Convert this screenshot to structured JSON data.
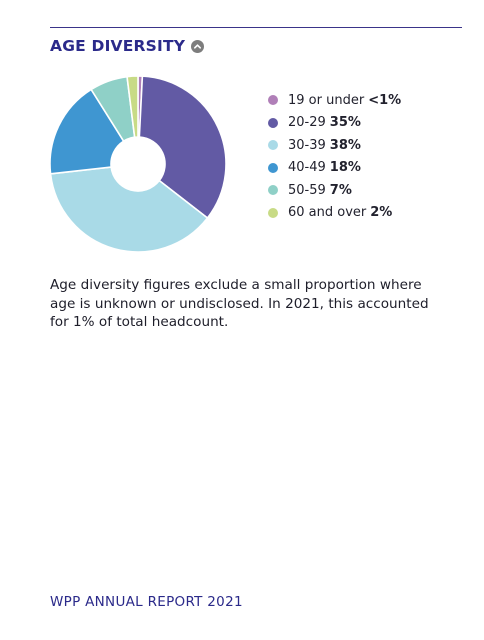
{
  "section": {
    "title": "AGE DIVERSITY",
    "toggle_icon": "chevron-up-icon"
  },
  "chart_data": {
    "type": "pie",
    "donut": true,
    "title": "AGE DIVERSITY",
    "categories": [
      "19 or under",
      "20-29",
      "30-39",
      "40-49",
      "50-59",
      "60 and over"
    ],
    "values": [
      0.8,
      35,
      38,
      18,
      7,
      2
    ],
    "value_labels": [
      "<1%",
      "35%",
      "38%",
      "18%",
      "7%",
      "2%"
    ],
    "colors": [
      "#b07fb8",
      "#625aa4",
      "#a9dae7",
      "#3f96d1",
      "#8fd0c7",
      "#c8db86"
    ],
    "legend_position": "right"
  },
  "legend": [
    {
      "label": "19 or under",
      "value": "<1%",
      "color": "#b07fb8"
    },
    {
      "label": "20-29",
      "value": "35%",
      "color": "#625aa4"
    },
    {
      "label": "30-39",
      "value": "38%",
      "color": "#a9dae7"
    },
    {
      "label": "40-49",
      "value": "18%",
      "color": "#3f96d1"
    },
    {
      "label": "50-59",
      "value": "7%",
      "color": "#8fd0c7"
    },
    {
      "label": "60 and over",
      "value": "2%",
      "color": "#c8db86"
    }
  ],
  "note": "Age diversity figures exclude a small proportion where age is unknown or undisclosed. In 2021, this accounted for 1% of total headcount.",
  "footer": "WPP ANNUAL REPORT 2021"
}
